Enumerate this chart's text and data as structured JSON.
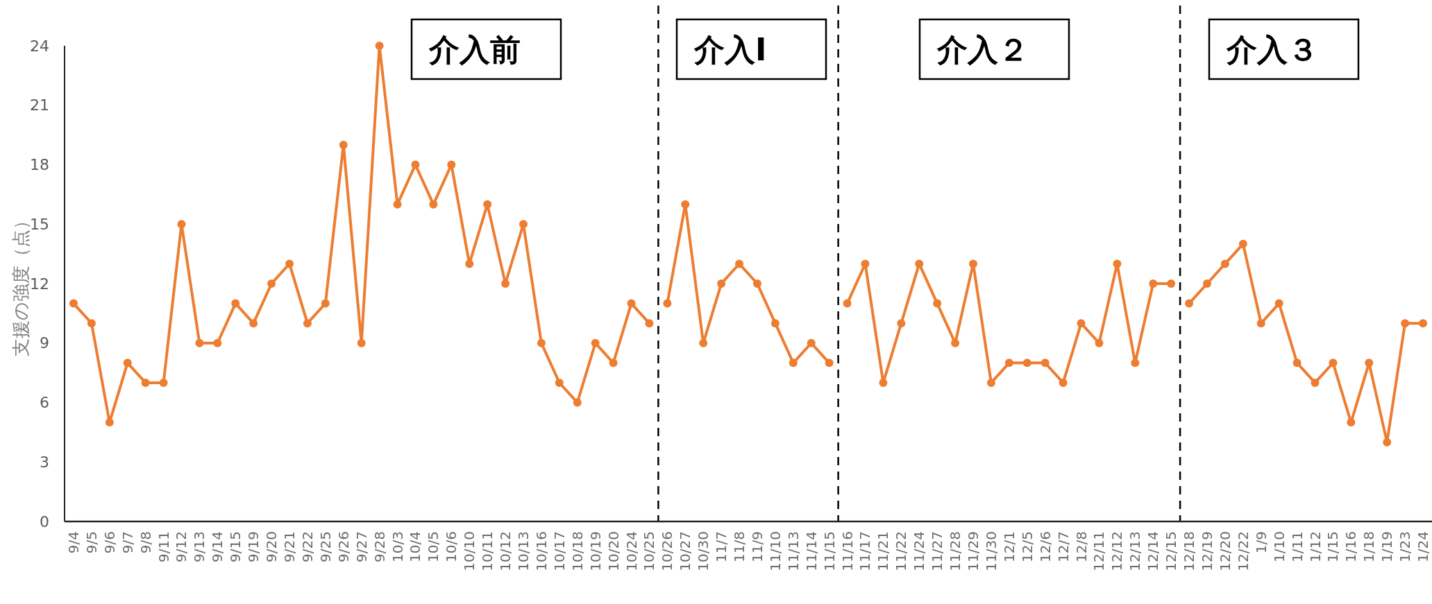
{
  "chart_data": {
    "type": "line",
    "ylabel": "支援の強度（点）",
    "categories": [
      "9/4",
      "9/5",
      "9/6",
      "9/7",
      "9/8",
      "9/11",
      "9/12",
      "9/13",
      "9/14",
      "9/15",
      "9/19",
      "9/20",
      "9/21",
      "9/22",
      "9/25",
      "9/26",
      "9/27",
      "9/28",
      "10/3",
      "10/4",
      "10/5",
      "10/6",
      "10/10",
      "10/11",
      "10/12",
      "10/13",
      "10/16",
      "10/17",
      "10/18",
      "10/19",
      "10/20",
      "10/24",
      "10/25",
      "10/26",
      "10/27",
      "10/30",
      "11/7",
      "11/8",
      "11/9",
      "11/10",
      "11/13",
      "11/14",
      "11/15",
      "11/16",
      "11/17",
      "11/21",
      "11/22",
      "11/24",
      "11/27",
      "11/28",
      "11/29",
      "11/30",
      "12/1",
      "12/5",
      "12/6",
      "12/7",
      "12/8",
      "12/11",
      "12/12",
      "12/13",
      "12/14",
      "12/15",
      "12/18",
      "12/19",
      "12/20",
      "12/22",
      "1/9",
      "1/10",
      "1/11",
      "1/12",
      "1/15",
      "1/16",
      "1/18",
      "1/19",
      "1/23",
      "1/24"
    ],
    "series": [
      {
        "color": "#ed7d31",
        "values": [
          11,
          10,
          5,
          8,
          7,
          7,
          15,
          9,
          9,
          11,
          10,
          12,
          13,
          10,
          11,
          19,
          9,
          24,
          16,
          18,
          16,
          18,
          13,
          16,
          12,
          15,
          9,
          7,
          6,
          9,
          8,
          11,
          10,
          null,
          null,
          null,
          null,
          null,
          null,
          null,
          null,
          null,
          null,
          null,
          null,
          null,
          null,
          null,
          null,
          null,
          null,
          null,
          null,
          null,
          null,
          null,
          null,
          null,
          null,
          null,
          null,
          null,
          null,
          null,
          null,
          null,
          null,
          null,
          null,
          null,
          null,
          null,
          null,
          null,
          null,
          null
        ]
      },
      {
        "color": "#ed7d31",
        "values": [
          null,
          null,
          null,
          null,
          null,
          null,
          null,
          null,
          null,
          null,
          null,
          null,
          null,
          null,
          null,
          null,
          null,
          null,
          null,
          null,
          null,
          null,
          null,
          null,
          null,
          null,
          null,
          null,
          null,
          null,
          null,
          null,
          null,
          11,
          16,
          9,
          12,
          13,
          12,
          10,
          8,
          9,
          8,
          null,
          null,
          null,
          null,
          null,
          null,
          null,
          null,
          null,
          null,
          null,
          null,
          null,
          null,
          null,
          null,
          null,
          null,
          null,
          null,
          null,
          null,
          null,
          null,
          null,
          null,
          null,
          null,
          null,
          null,
          null,
          null,
          null
        ]
      },
      {
        "color": "#ed7d31",
        "values": [
          null,
          null,
          null,
          null,
          null,
          null,
          null,
          null,
          null,
          null,
          null,
          null,
          null,
          null,
          null,
          null,
          null,
          null,
          null,
          null,
          null,
          null,
          null,
          null,
          null,
          null,
          null,
          null,
          null,
          null,
          null,
          null,
          null,
          null,
          null,
          null,
          null,
          null,
          null,
          null,
          null,
          null,
          null,
          11,
          13,
          7,
          10,
          13,
          11,
          9,
          13,
          7,
          8,
          8,
          8,
          7,
          10,
          9,
          13,
          8,
          12,
          12,
          null,
          null,
          null,
          null,
          null,
          null,
          null,
          null,
          null,
          null,
          null,
          null,
          null,
          null
        ]
      },
      {
        "color": "#ed7d31",
        "values": [
          null,
          null,
          null,
          null,
          null,
          null,
          null,
          null,
          null,
          null,
          null,
          null,
          null,
          null,
          null,
          null,
          null,
          null,
          null,
          null,
          null,
          null,
          null,
          null,
          null,
          null,
          null,
          null,
          null,
          null,
          null,
          null,
          null,
          null,
          null,
          null,
          null,
          null,
          null,
          null,
          null,
          null,
          null,
          null,
          null,
          null,
          null,
          null,
          null,
          null,
          null,
          null,
          null,
          null,
          null,
          null,
          null,
          null,
          null,
          null,
          null,
          null,
          11,
          12,
          13,
          14,
          10,
          11,
          8,
          7,
          8,
          5,
          8,
          4,
          10,
          10
        ]
      }
    ],
    "ylim": [
      0,
      24
    ],
    "yticks": [
      0,
      3,
      6,
      9,
      12,
      15,
      18,
      21,
      24
    ],
    "marker": "circle",
    "line_style": "solid",
    "annotations": [
      "介入前",
      "介入Ⅰ",
      "介入２",
      "介入３"
    ]
  }
}
